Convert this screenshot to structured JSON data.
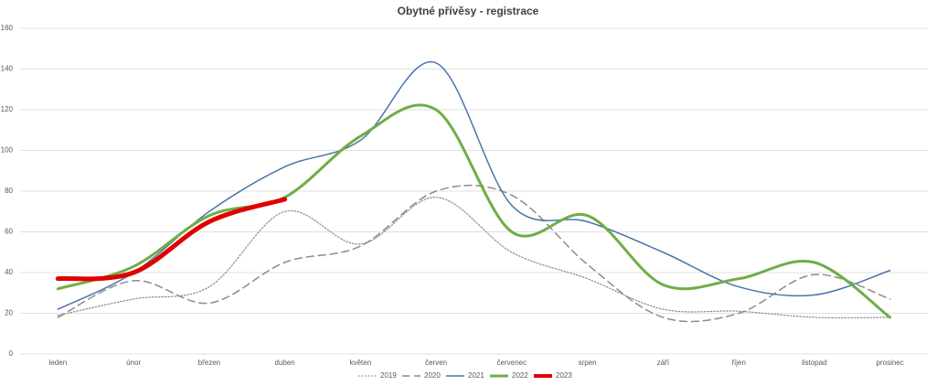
{
  "chart_data": {
    "type": "line",
    "title": "Obytné přívěsy - registrace",
    "categories": [
      "leden",
      "únor",
      "březen",
      "duben",
      "květen",
      "červen",
      "červenec",
      "srpen",
      "září",
      "říjen",
      "listopad",
      "prosinec"
    ],
    "series": [
      {
        "name": "2019",
        "color": "#8c8c8c",
        "style": "dotted",
        "values": [
          19,
          27,
          33,
          70,
          54,
          77,
          50,
          37,
          22,
          21,
          18,
          18
        ]
      },
      {
        "name": "2020",
        "color": "#8c8c8c",
        "style": "dashed",
        "values": [
          18,
          36,
          25,
          45,
          53,
          80,
          78,
          44,
          18,
          20,
          39,
          27
        ]
      },
      {
        "name": "2021",
        "color": "#4a76a8",
        "style": "solid",
        "values": [
          22,
          40,
          70,
          92,
          105,
          143,
          73,
          65,
          50,
          33,
          29,
          41
        ]
      },
      {
        "name": "2022",
        "color": "#70ad47",
        "style": "bold",
        "values": [
          32,
          43,
          68,
          77,
          107,
          120,
          60,
          68,
          34,
          37,
          45,
          18
        ]
      },
      {
        "name": "2023",
        "color": "#e00000",
        "style": "heavy",
        "values": [
          37,
          40,
          65,
          76,
          null,
          null,
          null,
          null,
          null,
          null,
          null,
          null
        ]
      }
    ],
    "ylim": [
      0,
      160
    ],
    "yticks": [
      0,
      20,
      40,
      60,
      80,
      100,
      120,
      140,
      160
    ],
    "grid": true,
    "legend": "bottom"
  }
}
